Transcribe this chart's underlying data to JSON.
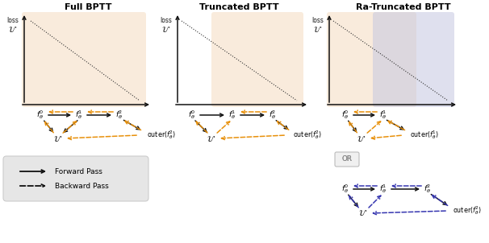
{
  "title1": "Full BPTT",
  "title2": "Truncated BPTT",
  "title3": "Ra-Truncated BPTT",
  "panel_bg_orange": "#f5dfc5",
  "panel_bg_blue": "#c5c8e0",
  "arrow_orange": "#e8900a",
  "arrow_blue": "#3535b0",
  "arrow_black": "#111111",
  "legend_bg": "#e4e4e4",
  "legend_forward": "Forward Pass",
  "legend_backward": "Backward Pass",
  "or_text": "OR",
  "figsize": [
    6.06,
    3.02
  ],
  "dpi": 100
}
